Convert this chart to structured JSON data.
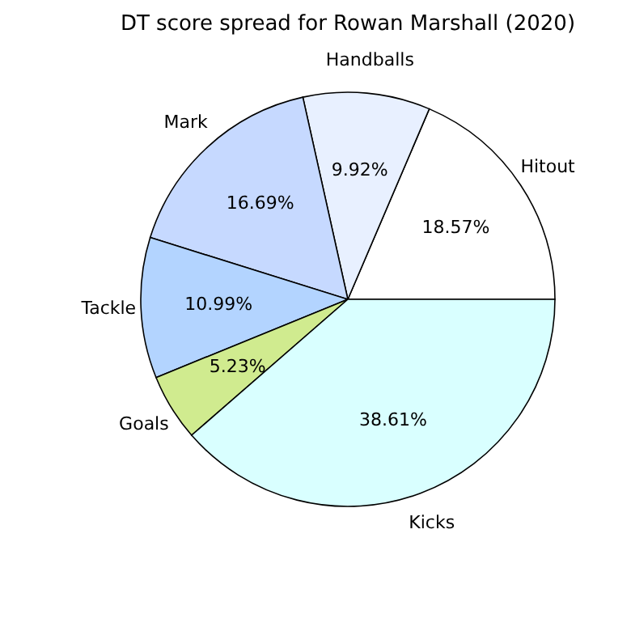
{
  "chart_data": {
    "type": "pie",
    "title": "DT score spread for Rowan Marshall (2020)",
    "categories": [
      "Hitout",
      "Handballs",
      "Mark",
      "Tackle",
      "Goals",
      "Kicks"
    ],
    "values": [
      18.57,
      9.92,
      16.69,
      10.99,
      5.23,
      38.61
    ],
    "colors": [
      "#ffffff",
      "#e8f0ff",
      "#c6d9ff",
      "#b3d4ff",
      "#d0eb8f",
      "#d9ffff"
    ],
    "value_labels": [
      "18.57%",
      "9.92%",
      "16.69%",
      "10.99%",
      "5.23%",
      "38.61%"
    ],
    "legend": false
  }
}
